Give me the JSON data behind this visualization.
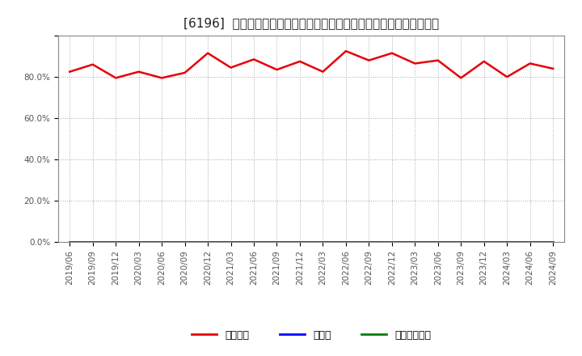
{
  "title": "[6196]  自己資本、のれん、繰延税金資産の総資産に対する比率の推移",
  "x_labels": [
    "2019/06",
    "2019/09",
    "2019/12",
    "2020/03",
    "2020/06",
    "2020/09",
    "2020/12",
    "2021/03",
    "2021/06",
    "2021/09",
    "2021/12",
    "2022/03",
    "2022/06",
    "2022/09",
    "2022/12",
    "2023/03",
    "2023/06",
    "2023/09",
    "2023/12",
    "2024/03",
    "2024/06",
    "2024/09"
  ],
  "equity_ratio": [
    82.5,
    86.0,
    79.5,
    82.5,
    79.5,
    82.0,
    91.5,
    84.5,
    88.5,
    83.5,
    87.5,
    82.5,
    92.5,
    88.0,
    91.5,
    86.5,
    88.0,
    79.5,
    87.5,
    80.0,
    86.5,
    84.0
  ],
  "goodwill_ratio": [
    0,
    0,
    0,
    0,
    0,
    0,
    0,
    0,
    0,
    0,
    0,
    0,
    0,
    0,
    0,
    0,
    0,
    0,
    0,
    0,
    0,
    0
  ],
  "deferred_tax_ratio": [
    0,
    0,
    0,
    0,
    0,
    0,
    0,
    0,
    0,
    0,
    0,
    0,
    0,
    0,
    0,
    0,
    0,
    0,
    0,
    0,
    0,
    0
  ],
  "equity_color": "#e8000a",
  "goodwill_color": "#0000ff",
  "deferred_tax_color": "#008000",
  "bg_color": "#ffffff",
  "plot_bg_color": "#ffffff",
  "grid_color": "#aaaaaa",
  "ylim": [
    0,
    100
  ],
  "yticks": [
    0,
    20,
    40,
    60,
    80,
    100
  ],
  "ytick_labels": [
    "0.0%",
    "20.0%",
    "40.0%",
    "60.0%",
    "80.0%",
    ""
  ],
  "legend_labels": [
    "自己資本",
    "のれん",
    "繰延税金資産"
  ],
  "title_fontsize": 11,
  "tick_fontsize": 7.5,
  "legend_fontsize": 9
}
